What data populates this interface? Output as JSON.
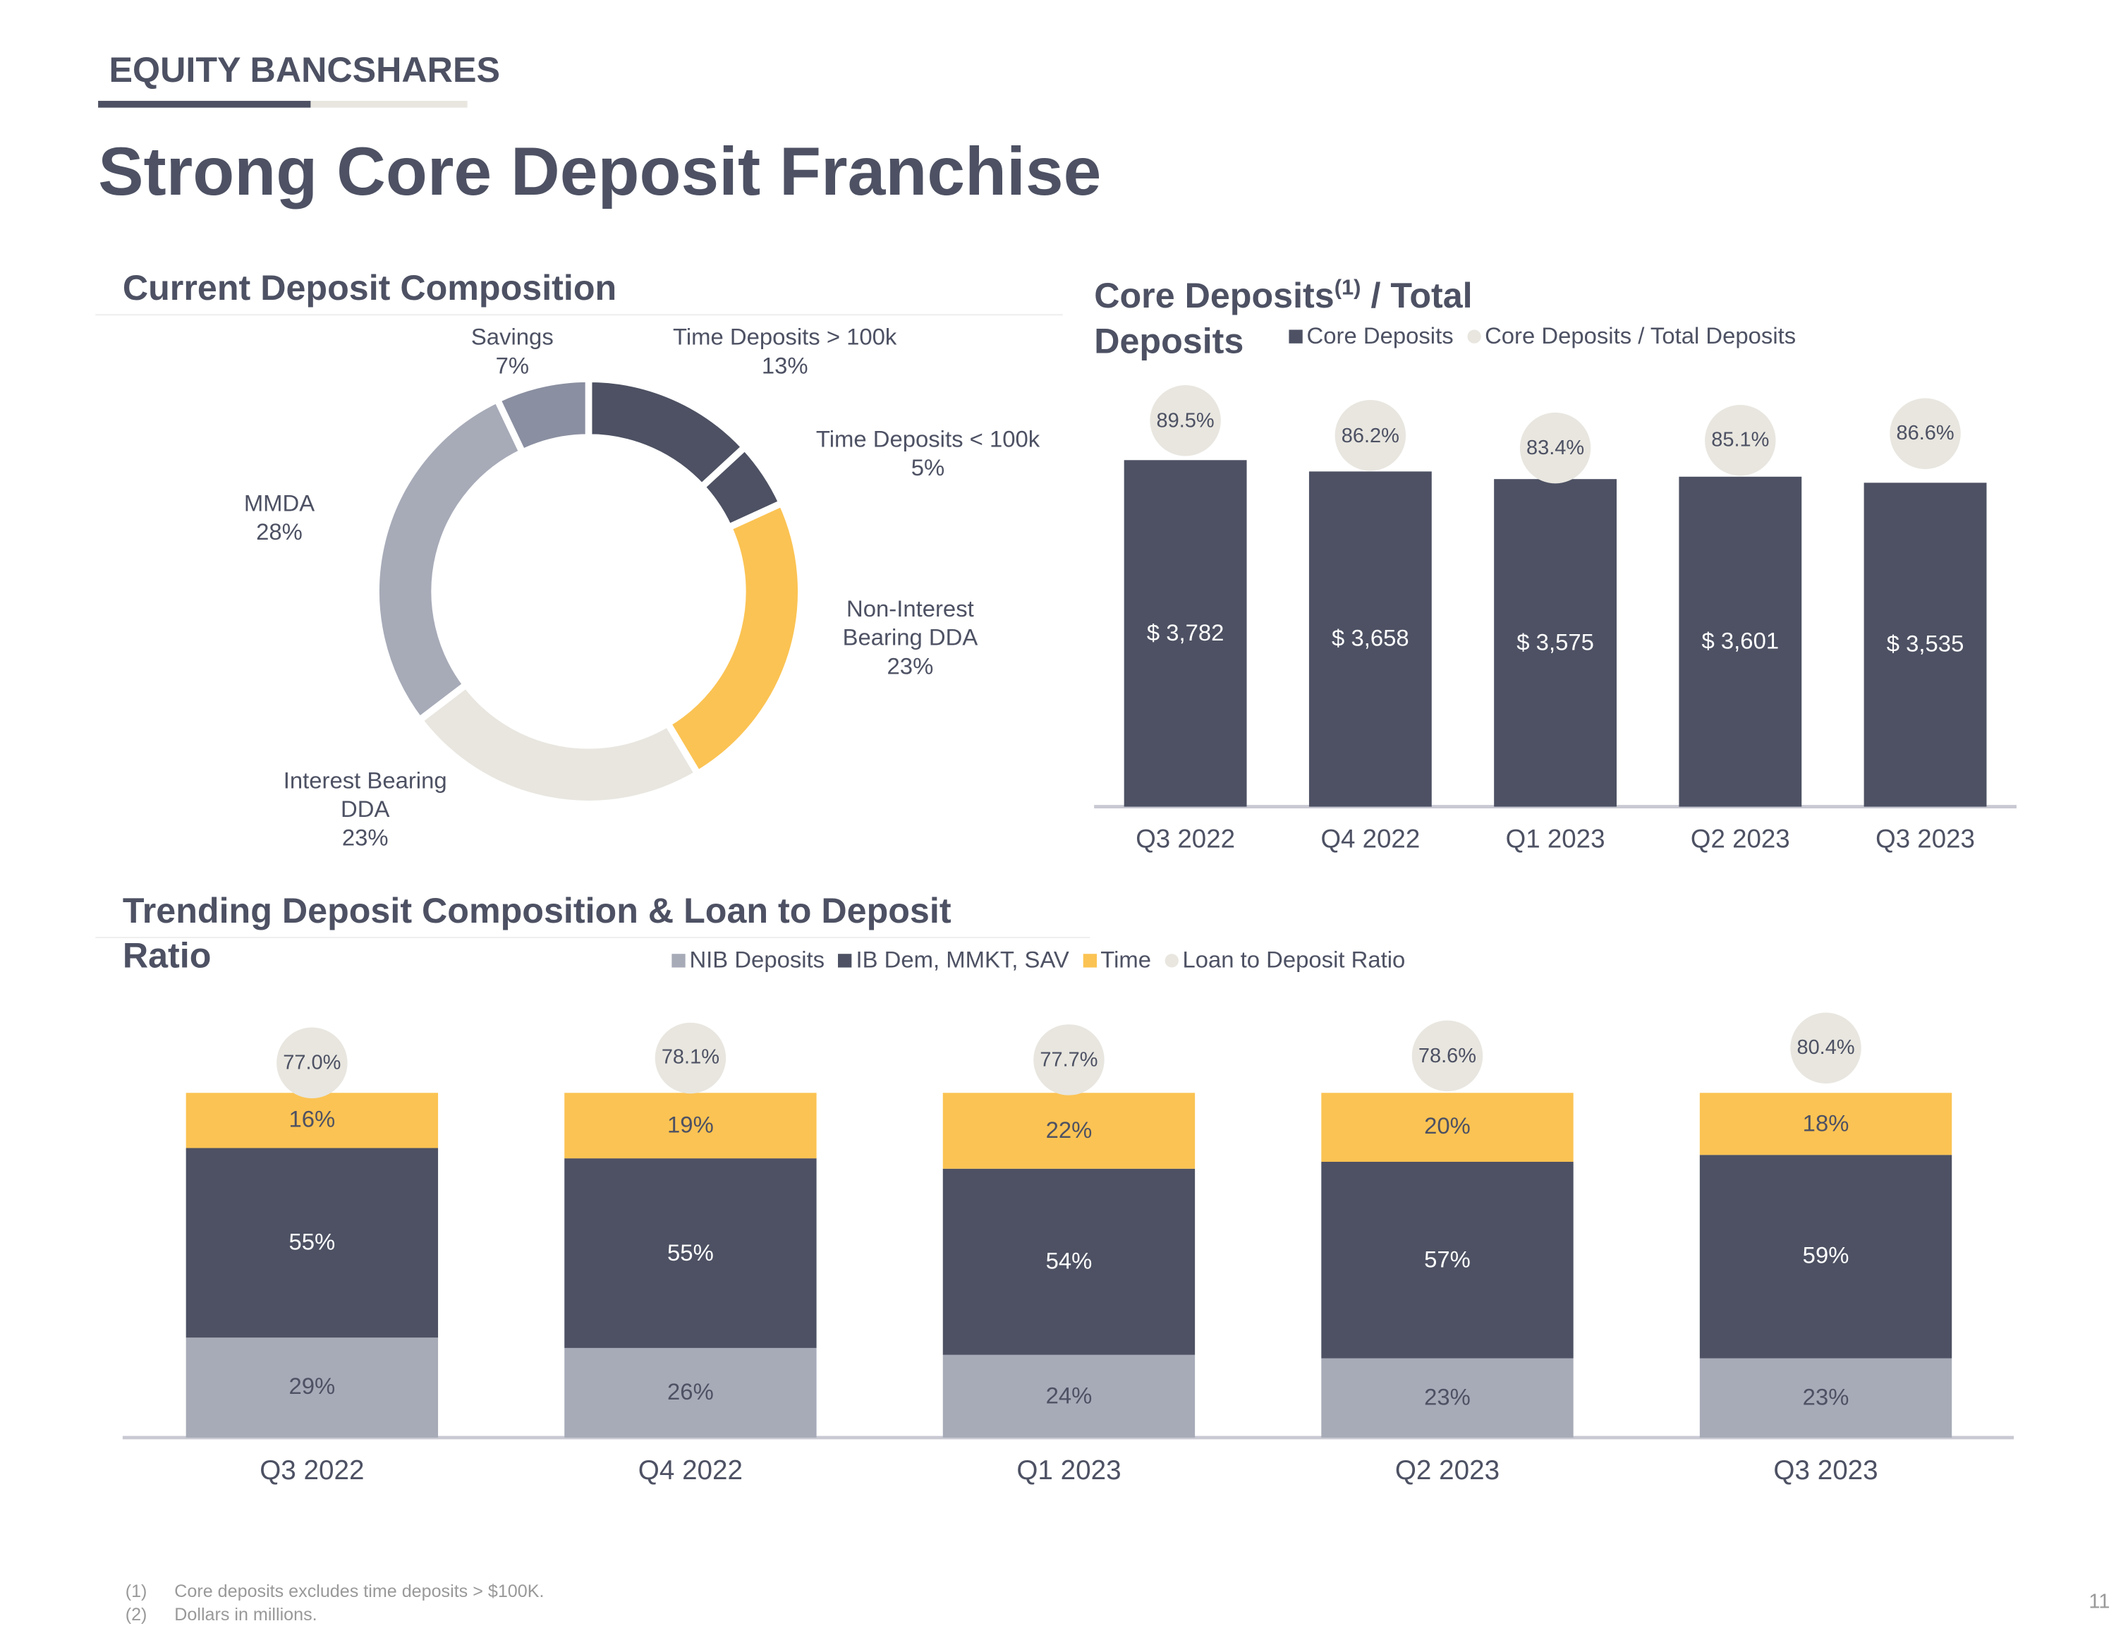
{
  "header": {
    "company": "EQUITY BANCSHARES",
    "title": "Strong Core Deposit Franchise"
  },
  "chart_data": [
    {
      "type": "donut",
      "title": "Current Deposit Composition",
      "categories": [
        "Time Deposits > 100k",
        "Time Deposits < 100k",
        "Non-Interest Bearing DDA",
        "Interest Bearing DDA",
        "MMDA",
        "Savings"
      ],
      "values": [
        13,
        5,
        23,
        23,
        28,
        7
      ],
      "value_labels": [
        "13%",
        "5%",
        "23%",
        "23%",
        "28%",
        "7%"
      ],
      "colors": [
        "#4d5163",
        "#4d5163",
        "#fbc353",
        "#e8e6df",
        "#a7abb8",
        "#8a8fa1"
      ]
    },
    {
      "type": "bar",
      "title": "Core Deposits",
      "title_note": "(1)",
      "title_rest": "/ Total Deposits",
      "categories": [
        "Q3 2022",
        "Q4 2022",
        "Q1 2023",
        "Q2 2023",
        "Q3 2023"
      ],
      "series": [
        {
          "name": "Core Deposits",
          "color": "#4d5163",
          "values": [
            3782,
            3658,
            3575,
            3601,
            3535
          ],
          "value_labels": [
            "$ 3,782",
            "$ 3,658",
            "$ 3,575",
            "$ 3,601",
            "$ 3,535"
          ]
        },
        {
          "name": "Core Deposits / Total Deposits",
          "color": "#e8e6df",
          "axis": "y2",
          "values": [
            89.5,
            86.2,
            83.4,
            85.1,
            86.6
          ],
          "value_labels": [
            "89.5%",
            "86.2%",
            "83.4%",
            "85.1%",
            "86.6%"
          ]
        }
      ],
      "ylim": [
        0,
        4000
      ],
      "y2lim": [
        80,
        90
      ]
    },
    {
      "type": "stacked_bar",
      "title": "Trending Deposit Composition & Loan to Deposit Ratio",
      "categories": [
        "Q3 2022",
        "Q4 2022",
        "Q1 2023",
        "Q2 2023",
        "Q3 2023"
      ],
      "series": [
        {
          "name": "NIB Deposits",
          "color": "#a7abb8",
          "values": [
            29,
            26,
            24,
            23,
            23
          ],
          "value_labels": [
            "29%",
            "26%",
            "24%",
            "23%",
            "23%"
          ]
        },
        {
          "name": "IB Dem, MMKT, SAV",
          "color": "#4d5163",
          "values": [
            55,
            55,
            54,
            57,
            59
          ],
          "value_labels": [
            "55%",
            "55%",
            "54%",
            "57%",
            "59%"
          ]
        },
        {
          "name": "Time",
          "color": "#fbc353",
          "values": [
            16,
            19,
            22,
            20,
            18
          ],
          "value_labels": [
            "16%",
            "19%",
            "22%",
            "20%",
            "18%"
          ]
        },
        {
          "name": "Loan to Deposit Ratio",
          "color": "#e8e6df",
          "axis": "y2",
          "values": [
            77.0,
            78.1,
            77.7,
            78.6,
            80.4
          ],
          "value_labels": [
            "77.0%",
            "78.1%",
            "77.7%",
            "78.6%",
            "80.4%"
          ]
        }
      ],
      "ylim": [
        0,
        100
      ],
      "y2lim": [
        75,
        85
      ]
    }
  ],
  "footnotes": [
    {
      "marker": "(1)",
      "text": "Core deposits excludes time deposits > $100K."
    },
    {
      "marker": "(2)",
      "text": "Dollars in millions."
    }
  ],
  "page_number": "11"
}
